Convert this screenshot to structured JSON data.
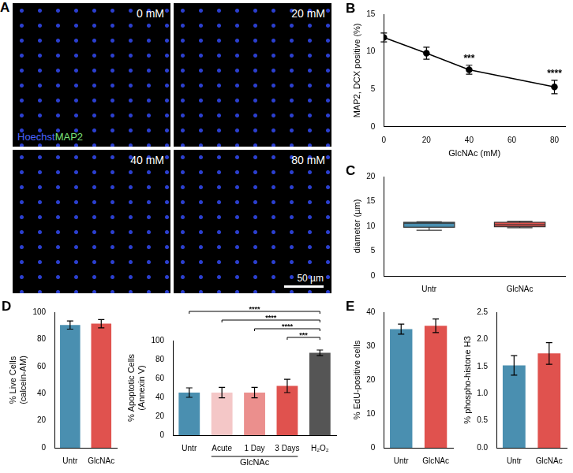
{
  "images": {
    "panel": "A",
    "tiles": [
      "0 mM",
      "20 mM",
      "40 mM",
      "80 mM"
    ],
    "stains": [
      {
        "name": "Hoechst",
        "color": "#4a64ff"
      },
      {
        "name": "MAP2",
        "color": "#7be07b"
      }
    ],
    "scale_bar": "50 µm"
  },
  "chart_data": [
    {
      "panel": "B",
      "type": "line",
      "x": [
        0,
        20,
        40,
        80
      ],
      "values": [
        11.9,
        9.8,
        7.6,
        5.3
      ],
      "errors": [
        0.6,
        0.8,
        0.6,
        0.9
      ],
      "color": "#000000",
      "marker": "circle",
      "x_label": "GlcNAc (mM)",
      "y_label": "MAP2, DCX positive (%)",
      "xlim": [
        0,
        85
      ],
      "xticks": [
        0,
        20,
        40,
        60,
        80
      ],
      "ylim": [
        0,
        15
      ],
      "yticks": [
        0,
        5,
        10,
        15
      ],
      "grid": false,
      "annotations": [
        {
          "x": 40,
          "text": "***"
        },
        {
          "x": 80,
          "text": "****"
        }
      ]
    },
    {
      "panel": "C",
      "type": "box",
      "categories": [
        "Untr",
        "GlcNAc"
      ],
      "boxes": [
        {
          "min": 9.2,
          "q1": 9.8,
          "median": 10.6,
          "q3": 10.8,
          "max": 10.9
        },
        {
          "min": 9.7,
          "q1": 9.9,
          "median": 10.3,
          "q3": 10.8,
          "max": 11.0
        }
      ],
      "colors": [
        "#4a8fb0",
        "#e0524e"
      ],
      "y_label": "diameter (µm)",
      "ylim": [
        0,
        20
      ],
      "yticks": [
        0,
        5,
        10,
        15,
        20
      ],
      "grid": false
    },
    {
      "panel": "D",
      "type": "bar",
      "categories": [
        "Untr",
        "GlcNAc"
      ],
      "values": [
        90.5,
        91.5
      ],
      "errors": [
        3,
        3
      ],
      "colors": [
        "#4a8fb0",
        "#e0524e"
      ],
      "y_label": [
        "% Live Cells",
        "(calcein-AM)"
      ],
      "ylim": [
        0,
        100
      ],
      "yticks": [
        0,
        20,
        40,
        60,
        80,
        100
      ],
      "grid": false
    },
    {
      "type": "bar",
      "categories": [
        "Untr",
        "Acute",
        "1 Day",
        "3 Days",
        "H₂O₂"
      ],
      "values": [
        45,
        45,
        45,
        52,
        87
      ],
      "errors": [
        5,
        5.5,
        5.5,
        7,
        3
      ],
      "colors": [
        "#4a8fb0",
        "#f4c7c7",
        "#eb8f8d",
        "#e0524e",
        "#555555"
      ],
      "y_label": [
        "% Apoptotic Cells",
        "(Annexin V)"
      ],
      "ylim": [
        0,
        100
      ],
      "yticks": [
        0,
        20,
        40,
        60,
        80,
        100
      ],
      "grid": false,
      "annotations": [
        {
          "from": "Untr",
          "to": "H₂O₂",
          "text": "****"
        },
        {
          "from": "Acute",
          "to": "H₂O₂",
          "text": "****"
        },
        {
          "from": "1 Day",
          "to": "H₂O₂",
          "text": "****"
        },
        {
          "from": "3 Days",
          "to": "H₂O₂",
          "text": "***"
        }
      ],
      "groups": [
        {
          "label": "GlcNAc",
          "from": "Acute",
          "to": "3 Days"
        }
      ]
    },
    {
      "panel": "E",
      "type": "bar",
      "categories": [
        "Untr",
        "GlcNAc"
      ],
      "values": [
        35,
        36
      ],
      "errors": [
        1.5,
        2
      ],
      "colors": [
        "#4a8fb0",
        "#e0524e"
      ],
      "y_label": "% EdU-positive cells",
      "ylim": [
        0,
        40
      ],
      "yticks": [
        0,
        10,
        20,
        30,
        40
      ],
      "grid": false
    },
    {
      "type": "bar",
      "categories": [
        "Untr",
        "GlcNAc"
      ],
      "values": [
        1.52,
        1.74
      ],
      "errors": [
        0.18,
        0.2
      ],
      "colors": [
        "#4a8fb0",
        "#e0524e"
      ],
      "y_label": "% phospho-histone H3",
      "ylim": [
        0,
        2.5
      ],
      "yticks": [
        {
          "value": 0,
          "label": "0.0"
        },
        0.5,
        {
          "value": 1,
          "label": "1.0"
        },
        1.5,
        {
          "value": 2,
          "label": "2.0"
        },
        2.5
      ],
      "grid": false
    }
  ]
}
